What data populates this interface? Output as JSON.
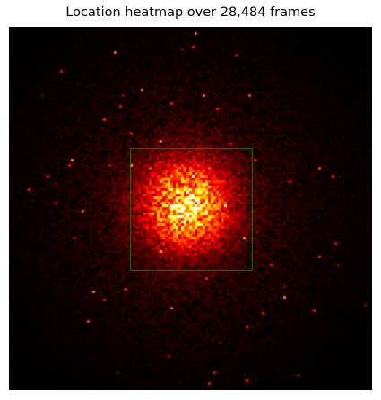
{
  "chart_data": {
    "type": "heatmap",
    "title": "Location heatmap over 28,484 frames",
    "frame_count": 28484,
    "xlabel": "",
    "ylabel": "",
    "axes_visible": false,
    "colormap": "hot",
    "grid": false,
    "resolution": 135,
    "hotspot": {
      "x": 0.49,
      "y": 0.49
    },
    "spread": 0.08,
    "halo": 0.25,
    "region_of_interest": {
      "x0": 0.335,
      "y0": 0.335,
      "x1": 0.67,
      "y1": 0.67,
      "color": "#008000"
    }
  }
}
